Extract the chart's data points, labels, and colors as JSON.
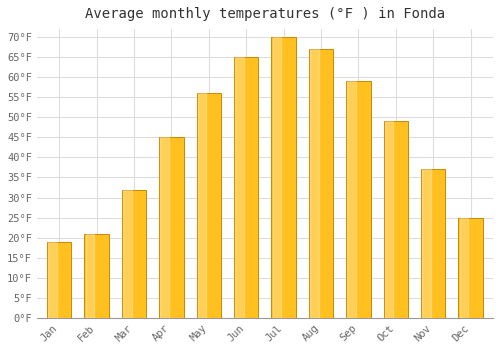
{
  "title": "Average monthly temperatures (°F ) in Fonda",
  "months": [
    "Jan",
    "Feb",
    "Mar",
    "Apr",
    "May",
    "Jun",
    "Jul",
    "Aug",
    "Sep",
    "Oct",
    "Nov",
    "Dec"
  ],
  "values": [
    19,
    21,
    32,
    45,
    56,
    65,
    70,
    67,
    59,
    49,
    37,
    25
  ],
  "bar_color": "#FFC020",
  "bar_edge_color": "#CC8800",
  "ylim": [
    0,
    72
  ],
  "yticks": [
    0,
    5,
    10,
    15,
    20,
    25,
    30,
    35,
    40,
    45,
    50,
    55,
    60,
    65,
    70
  ],
  "figure_bg": "#ffffff",
  "plot_bg": "#ffffff",
  "grid_color": "#dddddd",
  "title_fontsize": 10,
  "tick_fontsize": 7.5,
  "tick_color": "#666666",
  "font_family": "monospace"
}
